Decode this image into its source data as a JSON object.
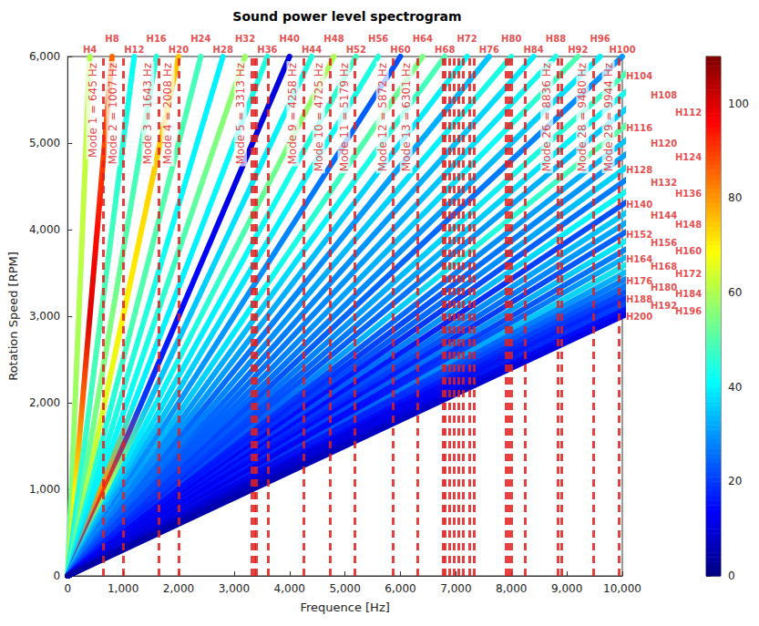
{
  "chart_data": {
    "type": "line",
    "title": "Sound power level spectrogram",
    "x_label": "Frequence [Hz]",
    "y_label": "Rotation Speed [RPM]",
    "xlim": [
      0,
      10000
    ],
    "xticks": [
      0,
      1000,
      2000,
      3000,
      4000,
      5000,
      6000,
      7000,
      8000,
      9000,
      10000
    ],
    "ylim": [
      0,
      6000
    ],
    "yticks": [
      0,
      1000,
      2000,
      3000,
      4000,
      5000,
      6000
    ],
    "grid": false,
    "rpm": [
      0,
      1000,
      2000,
      3000,
      4000,
      5000,
      6000
    ],
    "series": [
      {
        "name": "H4",
        "order": 4,
        "levels": [
          50,
          55,
          58,
          60,
          62,
          62,
          60
        ]
      },
      {
        "name": "H8",
        "order": 8,
        "levels": [
          60,
          70,
          85,
          100,
          95,
          88,
          85
        ]
      },
      {
        "name": "H12",
        "order": 12,
        "levels": [
          40,
          45,
          48,
          50,
          48,
          45,
          42
        ]
      },
      {
        "name": "H16",
        "order": 16,
        "levels": [
          45,
          50,
          55,
          55,
          50,
          48,
          45
        ]
      },
      {
        "name": "H20",
        "order": 20,
        "levels": [
          50,
          60,
          65,
          70,
          72,
          75,
          75
        ]
      },
      {
        "name": "H24",
        "order": 24,
        "levels": [
          40,
          45,
          45,
          50,
          50,
          50,
          48
        ]
      },
      {
        "name": "H28",
        "order": 28,
        "levels": [
          40,
          40,
          45,
          45,
          42,
          40,
          40
        ]
      },
      {
        "name": "H32",
        "order": 32,
        "levels": [
          35,
          40,
          42,
          45,
          50,
          55,
          58
        ]
      },
      {
        "name": "H36",
        "order": 36,
        "levels": [
          35,
          80,
          40,
          40,
          40,
          42,
          45
        ]
      },
      {
        "name": "H40",
        "order": 40,
        "levels": [
          20,
          90,
          20,
          15,
          12,
          10,
          10
        ]
      },
      {
        "name": "H44",
        "order": 44,
        "levels": [
          30,
          60,
          35,
          35,
          38,
          40,
          45
        ]
      },
      {
        "name": "H48",
        "order": 48,
        "levels": [
          35,
          38,
          40,
          45,
          50,
          55,
          60
        ]
      },
      {
        "name": "H52",
        "order": 52,
        "levels": [
          30,
          35,
          38,
          40,
          42,
          45,
          48
        ]
      },
      {
        "name": "H56",
        "order": 56,
        "levels": [
          30,
          32,
          35,
          38,
          40,
          42,
          45
        ]
      },
      {
        "name": "H60",
        "order": 60,
        "levels": [
          25,
          28,
          30,
          30,
          28,
          25,
          22
        ]
      },
      {
        "name": "H64",
        "order": 64,
        "levels": [
          28,
          30,
          35,
          40,
          45,
          50,
          55
        ]
      },
      {
        "name": "H68",
        "order": 68,
        "levels": [
          25,
          28,
          30,
          35,
          40,
          45,
          50
        ]
      },
      {
        "name": "H72",
        "order": 72,
        "levels": [
          25,
          28,
          30,
          32,
          35,
          38,
          42
        ]
      },
      {
        "name": "H76",
        "order": 76,
        "levels": [
          22,
          25,
          25,
          28,
          30,
          32,
          35
        ]
      },
      {
        "name": "H80",
        "order": 80,
        "levels": [
          22,
          25,
          28,
          30,
          35,
          40,
          45
        ]
      },
      {
        "name": "H84",
        "order": 84,
        "levels": [
          20,
          25,
          25,
          28,
          30,
          35,
          40
        ]
      },
      {
        "name": "H88",
        "order": 88,
        "levels": [
          20,
          22,
          25,
          28,
          32,
          38,
          44
        ]
      },
      {
        "name": "H92",
        "order": 92,
        "levels": [
          20,
          22,
          25,
          30,
          35,
          42,
          50
        ]
      },
      {
        "name": "H96",
        "order": 96,
        "levels": [
          20,
          22,
          25,
          28,
          30,
          35,
          40
        ]
      },
      {
        "name": "H100",
        "order": 100,
        "levels": [
          18,
          20,
          22,
          25,
          25,
          28,
          30
        ]
      },
      {
        "name": "H104",
        "order": 104,
        "levels": [
          15,
          20,
          25,
          30,
          38,
          45,
          50
        ]
      },
      {
        "name": "H108",
        "order": 108,
        "levels": [
          15,
          20,
          22,
          28,
          35,
          40,
          45
        ]
      },
      {
        "name": "H112",
        "order": 112,
        "levels": [
          15,
          18,
          22,
          25,
          30,
          35,
          40
        ]
      },
      {
        "name": "H116",
        "order": 116,
        "levels": [
          15,
          20,
          25,
          35,
          45,
          50,
          55
        ]
      },
      {
        "name": "H120",
        "order": 120,
        "levels": [
          12,
          15,
          20,
          25,
          30,
          35,
          38
        ]
      },
      {
        "name": "H124",
        "order": 124,
        "levels": [
          12,
          15,
          18,
          22,
          28,
          32,
          35
        ]
      },
      {
        "name": "H128",
        "order": 128,
        "levels": [
          12,
          15,
          20,
          25,
          32,
          40,
          45
        ]
      },
      {
        "name": "H132",
        "order": 132,
        "levels": [
          10,
          12,
          15,
          20,
          25,
          30,
          32
        ]
      },
      {
        "name": "H136",
        "order": 136,
        "levels": [
          12,
          15,
          22,
          30,
          40,
          45,
          48
        ]
      },
      {
        "name": "H140",
        "order": 140,
        "levels": [
          10,
          12,
          15,
          18,
          22,
          25,
          28
        ]
      },
      {
        "name": "H144",
        "order": 144,
        "levels": [
          10,
          15,
          20,
          28,
          35,
          40,
          42
        ]
      },
      {
        "name": "H148",
        "order": 148,
        "levels": [
          10,
          12,
          18,
          25,
          32,
          36,
          38
        ]
      },
      {
        "name": "H152",
        "order": 152,
        "levels": [
          10,
          12,
          15,
          20,
          25,
          28,
          30
        ]
      },
      {
        "name": "H156",
        "order": 156,
        "levels": [
          10,
          15,
          22,
          30,
          42,
          45,
          45
        ]
      },
      {
        "name": "H160",
        "order": 160,
        "levels": [
          10,
          12,
          15,
          22,
          30,
          35,
          35
        ]
      },
      {
        "name": "H164",
        "order": 164,
        "levels": [
          8,
          10,
          15,
          25,
          38,
          42,
          42
        ]
      },
      {
        "name": "H168",
        "order": 168,
        "levels": [
          10,
          15,
          25,
          35,
          45,
          48,
          48
        ]
      },
      {
        "name": "H172",
        "order": 172,
        "levels": [
          8,
          10,
          18,
          28,
          40,
          45,
          45
        ]
      },
      {
        "name": "H176",
        "order": 176,
        "levels": [
          8,
          12,
          18,
          25,
          32,
          35,
          35
        ]
      },
      {
        "name": "H180",
        "order": 180,
        "levels": [
          8,
          10,
          15,
          22,
          35,
          38,
          38
        ]
      },
      {
        "name": "H184",
        "order": 184,
        "levels": [
          6,
          8,
          12,
          20,
          28,
          30,
          30
        ]
      },
      {
        "name": "H188",
        "order": 188,
        "levels": [
          6,
          8,
          12,
          18,
          25,
          28,
          28
        ]
      },
      {
        "name": "H192",
        "order": 192,
        "levels": [
          5,
          8,
          12,
          20,
          30,
          32,
          32
        ]
      },
      {
        "name": "H196",
        "order": 196,
        "levels": [
          5,
          6,
          10,
          15,
          22,
          25,
          25
        ]
      },
      {
        "name": "H200",
        "order": 200,
        "levels": [
          4,
          5,
          8,
          12,
          18,
          20,
          20
        ]
      }
    ],
    "modes": [
      {
        "label": "Mode 1 = 645 Hz",
        "frequency": 645
      },
      {
        "label": "Mode 2 = 1007 Hz",
        "frequency": 1007
      },
      {
        "label": "Mode 3 = 1643 Hz",
        "frequency": 1643
      },
      {
        "label": "Mode 4 = 2008 Hz",
        "frequency": 2008
      },
      {
        "label": "Mode 5 = 3313 Hz",
        "frequency": 3313
      },
      {
        "label": null,
        "frequency": 3363
      },
      {
        "label": null,
        "frequency": 3400
      },
      {
        "label": null,
        "frequency": 3622
      },
      {
        "label": "Mode 9 = 4258 Hz",
        "frequency": 4258
      },
      {
        "label": "Mode 10 = 4725 Hz",
        "frequency": 4725
      },
      {
        "label": "Mode 11 = 5179 Hz",
        "frequency": 5179
      },
      {
        "label": "Mode 12 = 5872 Hz",
        "frequency": 5872
      },
      {
        "label": "Mode 13 = 6301 Hz",
        "frequency": 6301
      },
      {
        "label": null,
        "frequency": 6760
      },
      {
        "label": null,
        "frequency": 6800
      },
      {
        "label": null,
        "frequency": 6880
      },
      {
        "label": null,
        "frequency": 6960
      },
      {
        "label": null,
        "frequency": 7050
      },
      {
        "label": null,
        "frequency": 7130
      },
      {
        "label": null,
        "frequency": 7240
      },
      {
        "label": null,
        "frequency": 7330
      },
      {
        "label": null,
        "frequency": 7900
      },
      {
        "label": null,
        "frequency": 7950
      },
      {
        "label": null,
        "frequency": 8000
      },
      {
        "label": null,
        "frequency": 8240
      },
      {
        "label": "Mode 26 = 8836 Hz",
        "frequency": 8836
      },
      {
        "label": null,
        "frequency": 8900
      },
      {
        "label": "Mode 28 = 9480 Hz",
        "frequency": 9480
      },
      {
        "label": "Mode 29 = 9944 Hz",
        "frequency": 9944
      }
    ],
    "colorbar": {
      "range": [
        0,
        110
      ],
      "ticks": [
        0,
        20,
        40,
        60,
        80,
        100
      ]
    }
  }
}
